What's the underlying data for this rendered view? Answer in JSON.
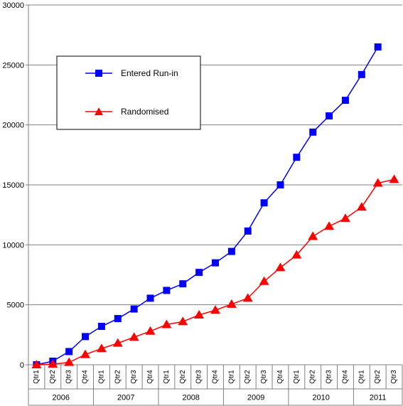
{
  "chart_data": {
    "type": "line",
    "title": "",
    "xlabel": "",
    "ylabel": "",
    "ylim": [
      0,
      30000
    ],
    "yticks": [
      0,
      5000,
      10000,
      15000,
      20000,
      25000,
      30000
    ],
    "grid": true,
    "legend_position": "top-left",
    "categories": [
      "Qtr1",
      "Qtr2",
      "Qtr3",
      "Qtr4",
      "Qtr1",
      "Qtr2",
      "Qtr3",
      "Qtr4",
      "Qtr1",
      "Qtr2",
      "Qtr3",
      "Qtr4",
      "Qtr1",
      "Qtr2",
      "Qtr3",
      "Qtr4",
      "Qtr1",
      "Qtr2",
      "Qtr3",
      "Qtr4",
      "Qtr1",
      "Qtr2",
      "Qtr3"
    ],
    "year_groups": [
      {
        "label": "2006",
        "count": 4
      },
      {
        "label": "2007",
        "count": 4
      },
      {
        "label": "2008",
        "count": 4
      },
      {
        "label": "2009",
        "count": 4
      },
      {
        "label": "2010",
        "count": 4
      },
      {
        "label": "2011",
        "count": 3
      }
    ],
    "series": [
      {
        "name": "Entered Run-in",
        "color": "#0000ff",
        "marker": "square",
        "values": [
          0,
          300,
          1100,
          2350,
          3200,
          3850,
          4650,
          5550,
          6200,
          6750,
          7700,
          8500,
          9450,
          11150,
          13500,
          15000,
          17300,
          19400,
          20750,
          22050,
          24200,
          26500,
          null
        ]
      },
      {
        "name": "Randomised",
        "color": "#ff0000",
        "marker": "triangle",
        "values": [
          0,
          50,
          200,
          850,
          1350,
          1800,
          2300,
          2800,
          3350,
          3600,
          4150,
          4550,
          5050,
          5550,
          6950,
          8100,
          9150,
          10700,
          11550,
          12200,
          13150,
          15150,
          15450
        ]
      }
    ]
  }
}
